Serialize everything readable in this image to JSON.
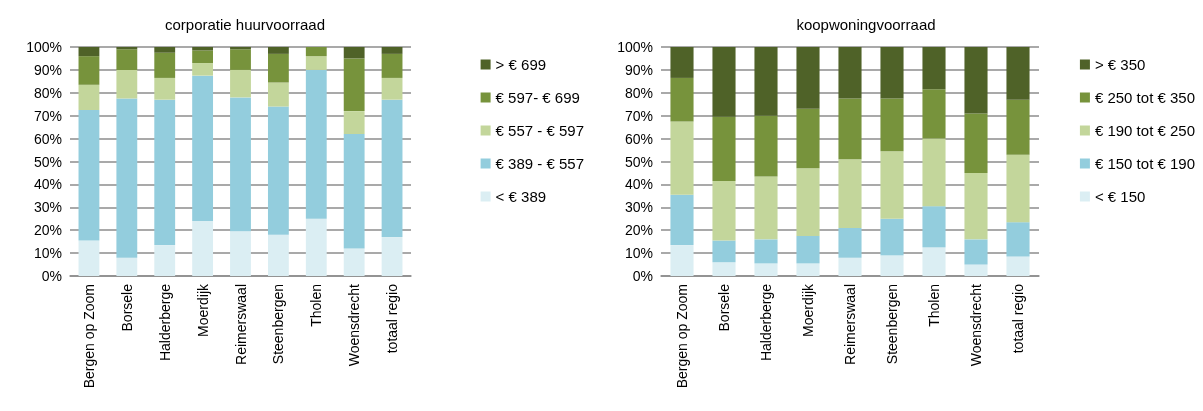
{
  "chart_data": [
    {
      "type": "bar",
      "title": "corporatie huurvoorraad",
      "stacked": true,
      "grid": "y",
      "legend": "right",
      "categories": [
        "Bergen op Zoom",
        "Borsele",
        "Halderberge",
        "Moerdijk",
        "Reimerswaal",
        "Steenbergen",
        "Tholen",
        "Woensdrecht",
        "totaal regio"
      ],
      "ylim": [
        0,
        100
      ],
      "yticks": [
        {
          "value": 0,
          "label": "0%"
        },
        {
          "value": 10,
          "label": "10%"
        },
        {
          "value": 20,
          "label": "20%"
        },
        {
          "value": 30,
          "label": "30%"
        },
        {
          "value": 40,
          "label": "40%"
        },
        {
          "value": 50,
          "label": "50%"
        },
        {
          "value": 60,
          "label": "60%"
        },
        {
          "value": 70,
          "label": "70%"
        },
        {
          "value": 80,
          "label": "80%"
        },
        {
          "value": 90,
          "label": "90%"
        },
        {
          "value": 100,
          "label": "100%"
        }
      ],
      "series": [
        {
          "name": "< € 389",
          "color": "#dbeef3",
          "values": [
            15.5,
            8,
            13.5,
            24,
            19.5,
            18,
            25,
            12,
            17
          ]
        },
        {
          "name": "€ 389 - € 557",
          "color": "#93cddd",
          "values": [
            57,
            69.5,
            63.5,
            63.5,
            58.5,
            56,
            65,
            50,
            60
          ]
        },
        {
          "name": "€ 557 - € 597",
          "color": "#c3d69b",
          "values": [
            11,
            12.5,
            9.5,
            5.5,
            12,
            10.5,
            6,
            10,
            9.5
          ]
        },
        {
          "name": "€ 597- € 699",
          "color": "#77933c",
          "values": [
            12.5,
            9,
            11,
            5.5,
            9,
            12.5,
            4,
            23,
            10.5
          ]
        },
        {
          "name": "> € 699",
          "color": "#4f6228",
          "values": [
            4,
            1,
            2.5,
            1.5,
            1,
            3,
            0,
            5,
            3
          ]
        }
      ]
    },
    {
      "type": "bar",
      "title": "koopwoningvoorraad",
      "stacked": true,
      "grid": "y",
      "legend": "right",
      "categories": [
        "Bergen op Zoom",
        "Borsele",
        "Halderberge",
        "Moerdijk",
        "Reimerswaal",
        "Steenbergen",
        "Tholen",
        "Woensdrecht",
        "totaal regio"
      ],
      "ylim": [
        0,
        100
      ],
      "yticks": [
        {
          "value": 0,
          "label": "0%"
        },
        {
          "value": 10,
          "label": "10%"
        },
        {
          "value": 20,
          "label": "20%"
        },
        {
          "value": 30,
          "label": "30%"
        },
        {
          "value": 40,
          "label": "40%"
        },
        {
          "value": 50,
          "label": "50%"
        },
        {
          "value": 60,
          "label": "60%"
        },
        {
          "value": 70,
          "label": "70%"
        },
        {
          "value": 80,
          "label": "80%"
        },
        {
          "value": 90,
          "label": "90%"
        },
        {
          "value": 100,
          "label": "100%"
        }
      ],
      "series": [
        {
          "name": "< € 150",
          "color": "#dbeef3",
          "values": [
            13.5,
            6,
            5.5,
            5.5,
            8,
            9,
            12.5,
            5,
            8.5
          ]
        },
        {
          "name": "€ 150 tot € 190",
          "color": "#93cddd",
          "values": [
            22,
            9.5,
            10.5,
            12,
            13,
            16,
            18,
            11,
            15
          ]
        },
        {
          "name": "€ 190 tot € 250",
          "color": "#c3d69b",
          "values": [
            32,
            26,
            27.5,
            29.5,
            30,
            29.5,
            29.5,
            29,
            29.5
          ]
        },
        {
          "name": "€ 250 tot € 350",
          "color": "#77933c",
          "values": [
            19,
            28,
            26.5,
            26,
            26.5,
            23,
            21.5,
            26,
            24
          ]
        },
        {
          "name": "> € 350",
          "color": "#4f6228",
          "values": [
            13.5,
            30.5,
            30,
            27,
            22.5,
            22.5,
            18.5,
            29,
            23
          ]
        }
      ]
    }
  ]
}
